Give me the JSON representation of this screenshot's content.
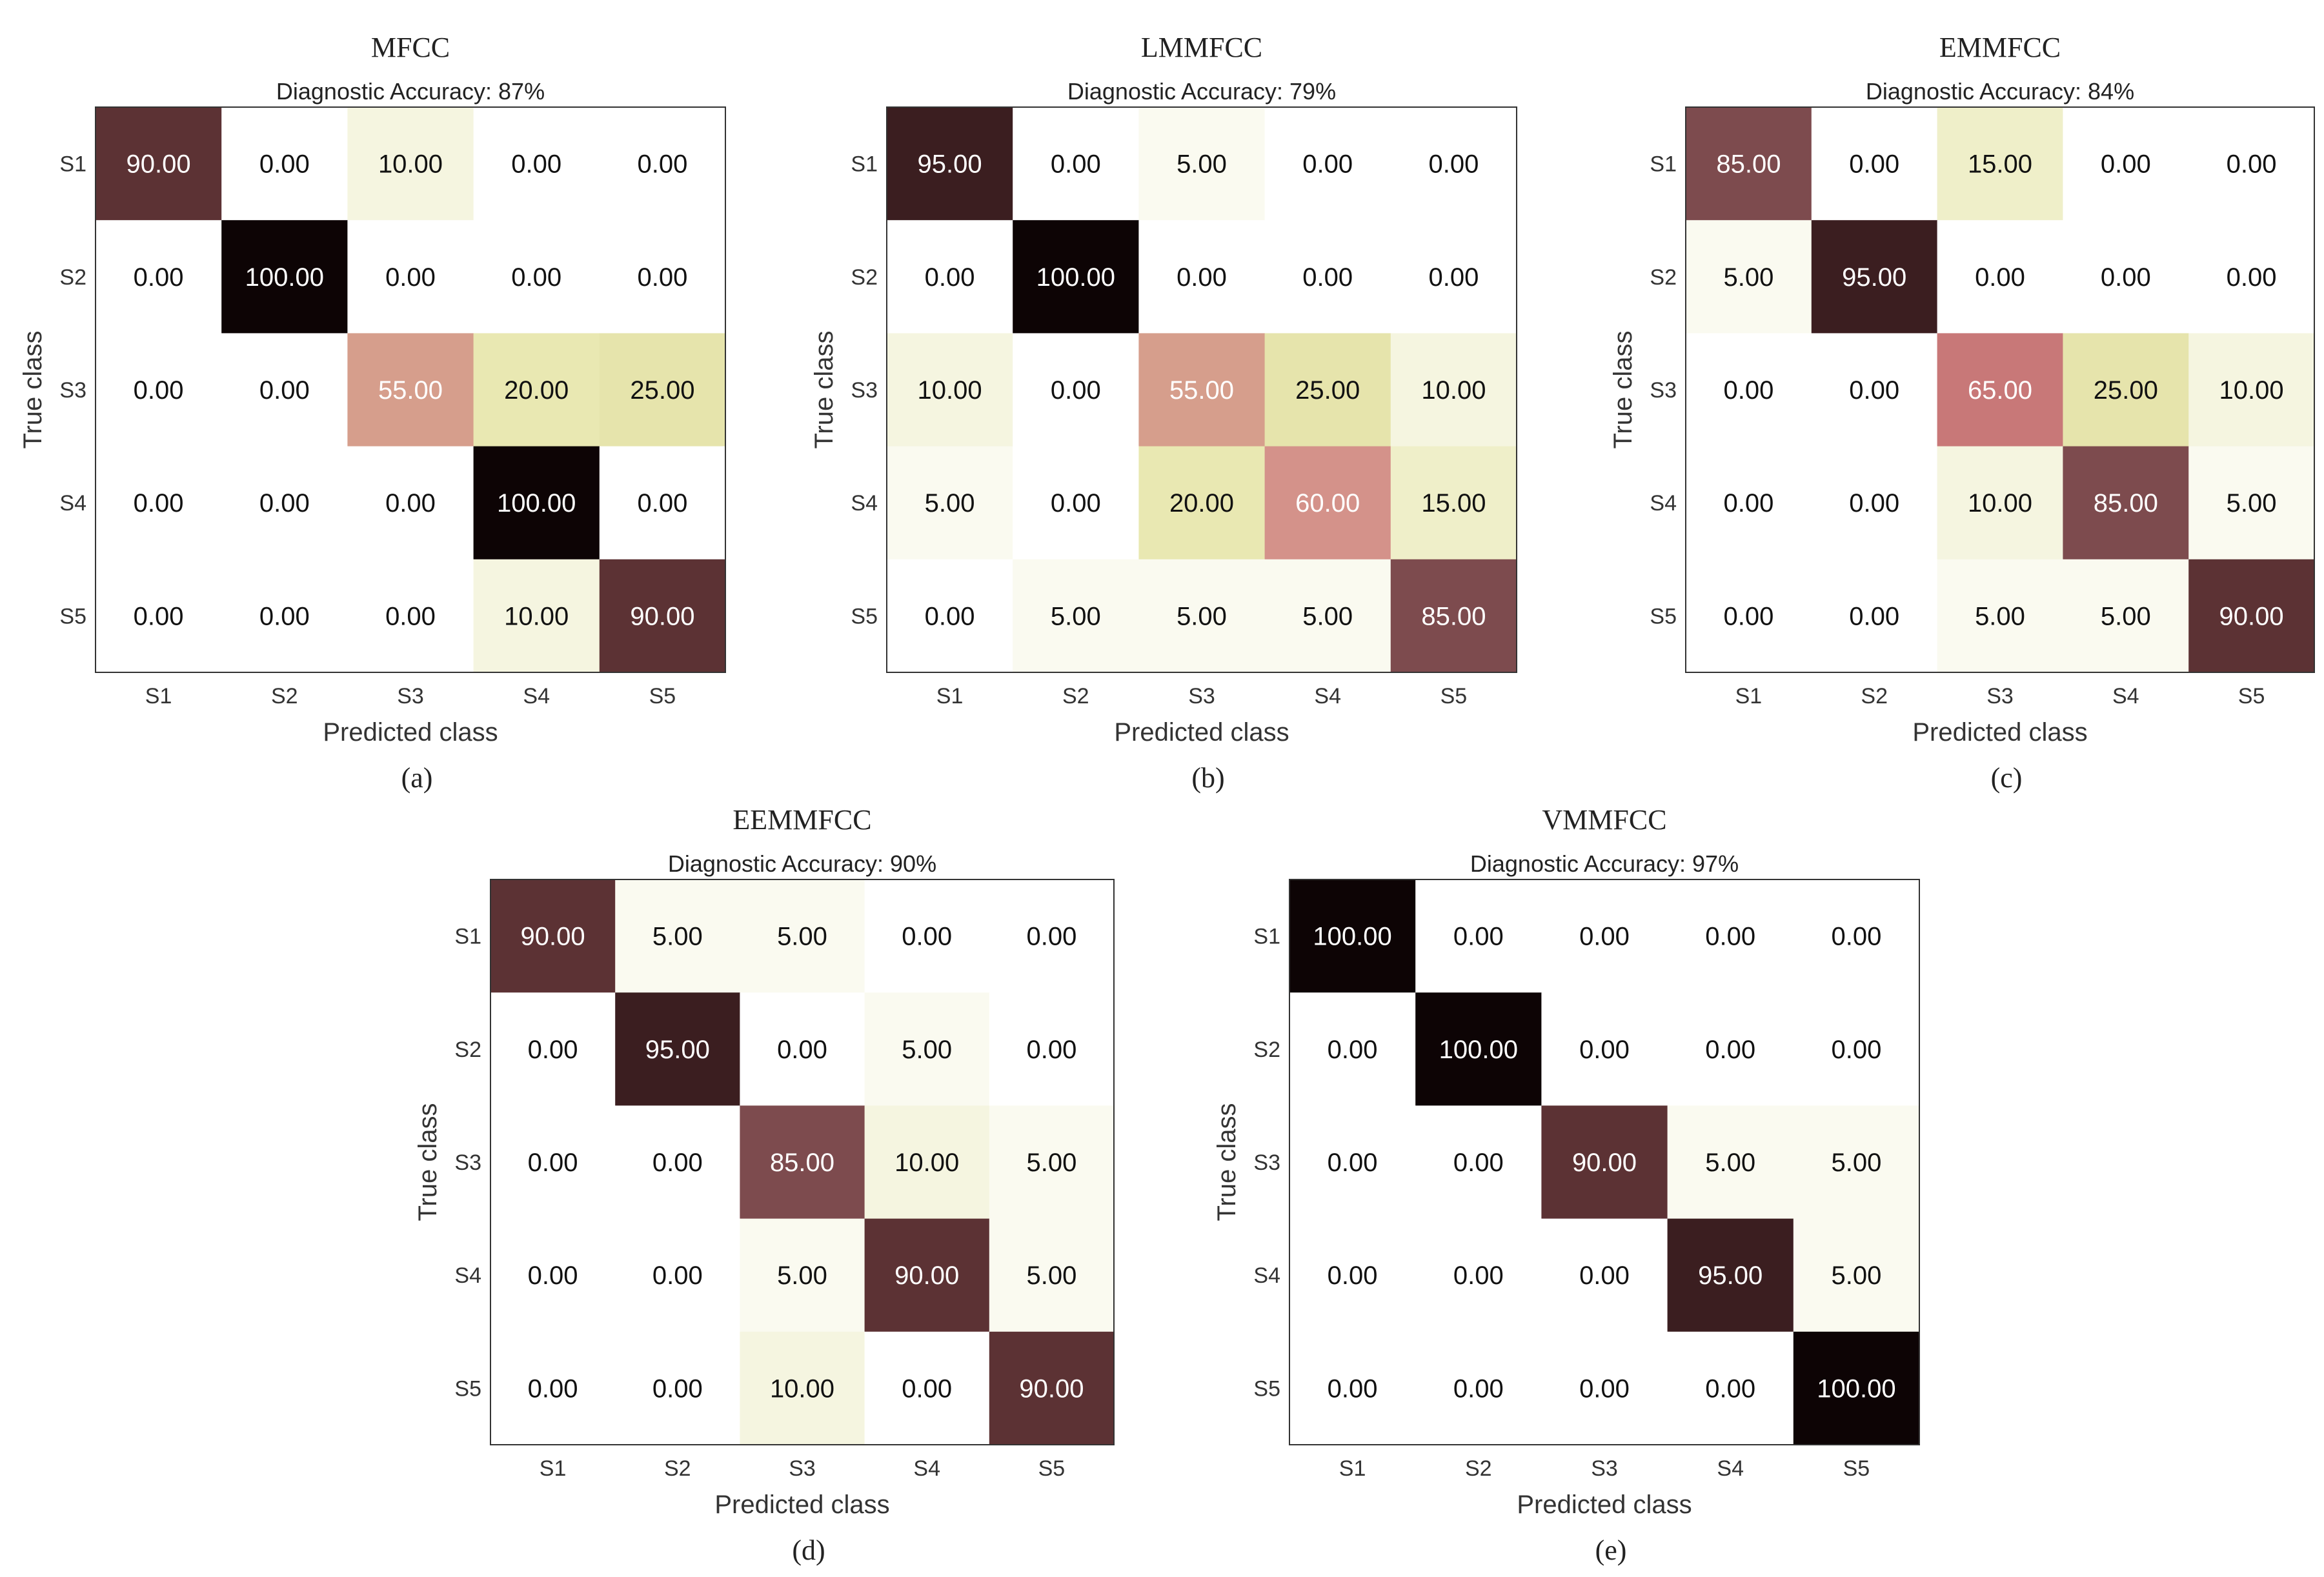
{
  "chart_data": [
    {
      "type": "heatmap",
      "title": "MFCC",
      "subtitle": "Diagnostic Accuracy: 87%",
      "xlabel": "Predicted class",
      "ylabel": "True class",
      "caption": "(a)",
      "x_categories": [
        "S1",
        "S2",
        "S3",
        "S4",
        "S5"
      ],
      "y_categories": [
        "S1",
        "S2",
        "S3",
        "S4",
        "S5"
      ],
      "matrix": [
        [
          90.0,
          0.0,
          10.0,
          0.0,
          0.0
        ],
        [
          0.0,
          100.0,
          0.0,
          0.0,
          0.0
        ],
        [
          0.0,
          0.0,
          55.0,
          20.0,
          25.0
        ],
        [
          0.0,
          0.0,
          0.0,
          100.0,
          0.0
        ],
        [
          0.0,
          0.0,
          0.0,
          10.0,
          90.0
        ]
      ]
    },
    {
      "type": "heatmap",
      "title": "LMMFCC",
      "subtitle": "Diagnostic Accuracy: 79%",
      "xlabel": "Predicted class",
      "ylabel": "True class",
      "caption": "(b)",
      "x_categories": [
        "S1",
        "S2",
        "S3",
        "S4",
        "S5"
      ],
      "y_categories": [
        "S1",
        "S2",
        "S3",
        "S4",
        "S5"
      ],
      "matrix": [
        [
          95.0,
          0.0,
          5.0,
          0.0,
          0.0
        ],
        [
          0.0,
          100.0,
          0.0,
          0.0,
          0.0
        ],
        [
          10.0,
          0.0,
          55.0,
          25.0,
          10.0
        ],
        [
          5.0,
          0.0,
          20.0,
          60.0,
          15.0
        ],
        [
          0.0,
          5.0,
          5.0,
          5.0,
          85.0
        ]
      ]
    },
    {
      "type": "heatmap",
      "title": "EMMFCC",
      "subtitle": "Diagnostic Accuracy: 84%",
      "xlabel": "Predicted class",
      "ylabel": "True class",
      "caption": "(c)",
      "x_categories": [
        "S1",
        "S2",
        "S3",
        "S4",
        "S5"
      ],
      "y_categories": [
        "S1",
        "S2",
        "S3",
        "S4",
        "S5"
      ],
      "matrix": [
        [
          85.0,
          0.0,
          15.0,
          0.0,
          0.0
        ],
        [
          5.0,
          95.0,
          0.0,
          0.0,
          0.0
        ],
        [
          0.0,
          0.0,
          65.0,
          25.0,
          10.0
        ],
        [
          0.0,
          0.0,
          10.0,
          85.0,
          5.0
        ],
        [
          0.0,
          0.0,
          5.0,
          5.0,
          90.0
        ]
      ]
    },
    {
      "type": "heatmap",
      "title": "EEMMFCC",
      "subtitle": "Diagnostic Accuracy: 90%",
      "xlabel": "Predicted class",
      "ylabel": "True class",
      "caption": "(d)",
      "x_categories": [
        "S1",
        "S2",
        "S3",
        "S4",
        "S5"
      ],
      "y_categories": [
        "S1",
        "S2",
        "S3",
        "S4",
        "S5"
      ],
      "matrix": [
        [
          90.0,
          5.0,
          5.0,
          0.0,
          0.0
        ],
        [
          0.0,
          95.0,
          0.0,
          5.0,
          0.0
        ],
        [
          0.0,
          0.0,
          85.0,
          10.0,
          5.0
        ],
        [
          0.0,
          0.0,
          5.0,
          90.0,
          5.0
        ],
        [
          0.0,
          0.0,
          10.0,
          0.0,
          90.0
        ]
      ]
    },
    {
      "type": "heatmap",
      "title": "VMMFCC",
      "subtitle": "Diagnostic Accuracy: 97%",
      "xlabel": "Predicted class",
      "ylabel": "True class",
      "caption": "(e)",
      "x_categories": [
        "S1",
        "S2",
        "S3",
        "S4",
        "S5"
      ],
      "y_categories": [
        "S1",
        "S2",
        "S3",
        "S4",
        "S5"
      ],
      "matrix": [
        [
          100.0,
          0.0,
          0.0,
          0.0,
          0.0
        ],
        [
          0.0,
          100.0,
          0.0,
          0.0,
          0.0
        ],
        [
          0.0,
          0.0,
          90.0,
          5.0,
          5.0
        ],
        [
          0.0,
          0.0,
          0.0,
          95.0,
          5.0
        ],
        [
          0.0,
          0.0,
          0.0,
          0.0,
          100.0
        ]
      ]
    }
  ],
  "colorscale": {
    "stops": [
      {
        "value": 0,
        "color": "#ffffff"
      },
      {
        "value": 10,
        "color": "#f5f5e0"
      },
      {
        "value": 20,
        "color": "#e9e8b2"
      },
      {
        "value": 25,
        "color": "#e6e4ac"
      },
      {
        "value": 55,
        "color": "#d69e8c"
      },
      {
        "value": 60,
        "color": "#d4928a"
      },
      {
        "value": 65,
        "color": "#c87878"
      },
      {
        "value": 85,
        "color": "#7d4b4e"
      },
      {
        "value": 90,
        "color": "#5c3234"
      },
      {
        "value": 95,
        "color": "#3b1e20"
      },
      {
        "value": 100,
        "color": "#0d0405"
      }
    ],
    "light_text_color": "#ffffff",
    "dark_text_color": "#111111"
  }
}
